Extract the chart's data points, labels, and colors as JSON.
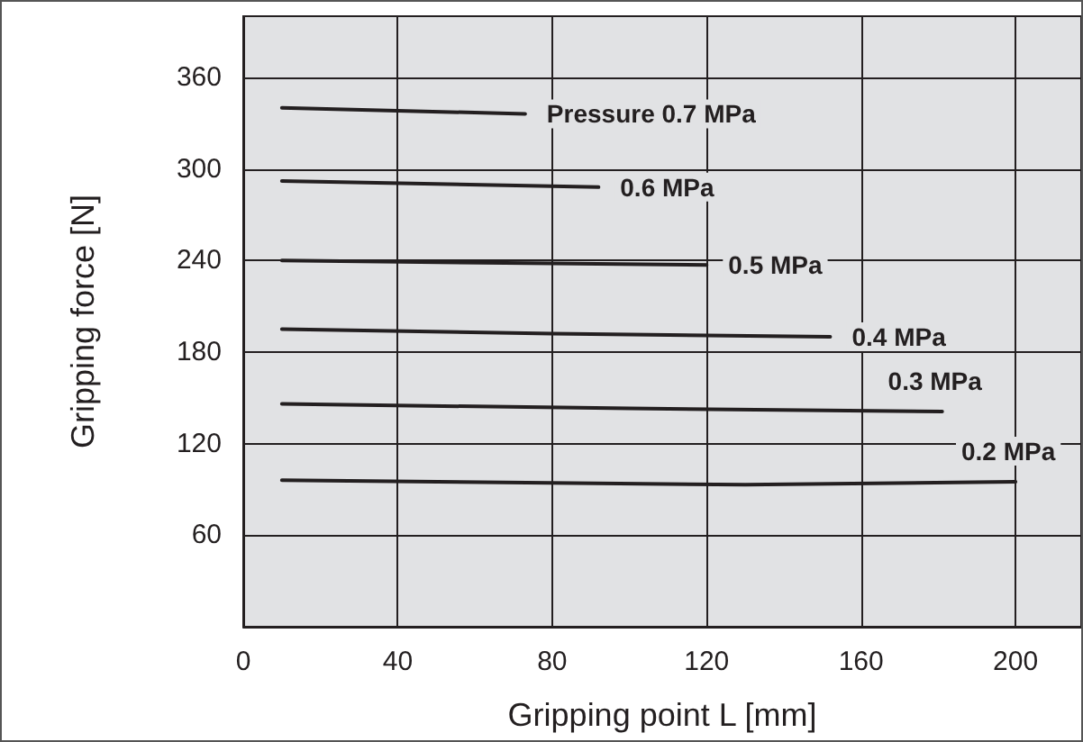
{
  "chart_data": {
    "type": "line",
    "xlabel": "Gripping point L [mm]",
    "ylabel": "Gripping force [N]",
    "xlim": [
      0,
      217
    ],
    "xticks": [
      0,
      40,
      80,
      120,
      160,
      200
    ],
    "ylim": [
      0,
      400
    ],
    "yticks": [
      60,
      120,
      180,
      240,
      300,
      360
    ],
    "grid": true,
    "marker": "none",
    "line_style": "solid",
    "series": [
      {
        "name": "Pressure 0.7 MPa",
        "color": "#231f20",
        "x": [
          10,
          73
        ],
        "values": [
          340,
          336
        ]
      },
      {
        "name": "0.6 MPa",
        "color": "#231f20",
        "x": [
          10,
          92
        ],
        "values": [
          292,
          288
        ]
      },
      {
        "name": "0.5 MPa",
        "color": "#231f20",
        "x": [
          10,
          80,
          120
        ],
        "values": [
          240,
          238,
          237
        ]
      },
      {
        "name": "0.4 MPa",
        "color": "#231f20",
        "x": [
          10,
          80,
          152
        ],
        "values": [
          195,
          192,
          190
        ]
      },
      {
        "name": "0.3 MPa",
        "color": "#231f20",
        "x": [
          10,
          100,
          181
        ],
        "values": [
          146,
          143,
          141
        ]
      },
      {
        "name": "0.2 MPa",
        "color": "#231f20",
        "x": [
          10,
          130,
          200
        ],
        "values": [
          96,
          93,
          95
        ]
      }
    ]
  }
}
